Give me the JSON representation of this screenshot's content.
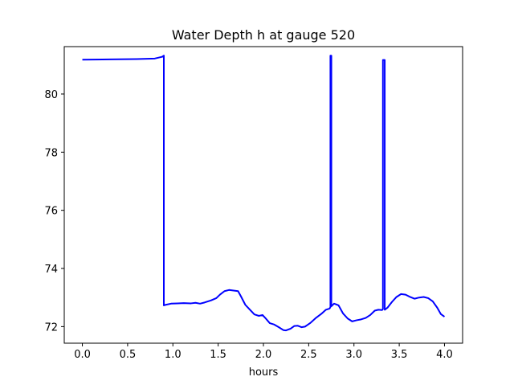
{
  "chart_data": {
    "type": "line",
    "title": "Water Depth h at gauge 520",
    "xlabel": "hours",
    "ylabel": "",
    "xlim": [
      -0.2,
      4.2
    ],
    "ylim": [
      71.43,
      81.63
    ],
    "x_ticks": [
      0.0,
      0.5,
      1.0,
      1.5,
      2.0,
      2.5,
      3.0,
      3.5,
      4.0
    ],
    "x_tick_labels": [
      "0.0",
      "0.5",
      "1.0",
      "1.5",
      "2.0",
      "2.5",
      "3.0",
      "3.5",
      "4.0"
    ],
    "y_ticks": [
      72,
      74,
      76,
      78,
      80
    ],
    "y_tick_labels": [
      "72",
      "74",
      "76",
      "78",
      "80"
    ],
    "grid": false,
    "legend": "none",
    "colors": {
      "line": "#0000ff",
      "axes": "#000000",
      "background": "#ffffff"
    },
    "series": [
      {
        "points": [
          [
            0.0,
            81.18
          ],
          [
            0.3,
            81.19
          ],
          [
            0.6,
            81.2
          ],
          [
            0.8,
            81.22
          ],
          [
            0.88,
            81.28
          ],
          [
            0.9,
            81.32
          ],
          [
            0.9,
            72.73
          ],
          [
            0.92,
            72.75
          ],
          [
            0.98,
            72.79
          ],
          [
            1.05,
            72.8
          ],
          [
            1.12,
            72.81
          ],
          [
            1.2,
            72.8
          ],
          [
            1.25,
            72.82
          ],
          [
            1.3,
            72.79
          ],
          [
            1.35,
            72.83
          ],
          [
            1.42,
            72.9
          ],
          [
            1.48,
            72.98
          ],
          [
            1.52,
            73.1
          ],
          [
            1.57,
            73.22
          ],
          [
            1.62,
            73.26
          ],
          [
            1.67,
            73.24
          ],
          [
            1.72,
            73.22
          ],
          [
            1.75,
            73.05
          ],
          [
            1.8,
            72.75
          ],
          [
            1.86,
            72.55
          ],
          [
            1.9,
            72.42
          ],
          [
            1.95,
            72.37
          ],
          [
            1.99,
            72.4
          ],
          [
            2.02,
            72.3
          ],
          [
            2.07,
            72.12
          ],
          [
            2.12,
            72.07
          ],
          [
            2.17,
            71.98
          ],
          [
            2.22,
            71.88
          ],
          [
            2.25,
            71.87
          ],
          [
            2.3,
            71.93
          ],
          [
            2.34,
            72.02
          ],
          [
            2.38,
            72.03
          ],
          [
            2.42,
            71.98
          ],
          [
            2.46,
            72.0
          ],
          [
            2.52,
            72.13
          ],
          [
            2.58,
            72.3
          ],
          [
            2.64,
            72.44
          ],
          [
            2.69,
            72.58
          ],
          [
            2.73,
            72.62
          ],
          [
            2.74,
            72.67
          ],
          [
            2.74,
            81.32
          ],
          [
            2.75,
            81.32
          ],
          [
            2.75,
            72.7
          ],
          [
            2.78,
            72.79
          ],
          [
            2.8,
            72.77
          ],
          [
            2.83,
            72.73
          ],
          [
            2.88,
            72.45
          ],
          [
            2.93,
            72.28
          ],
          [
            2.98,
            72.18
          ],
          [
            3.03,
            72.22
          ],
          [
            3.08,
            72.25
          ],
          [
            3.13,
            72.3
          ],
          [
            3.18,
            72.4
          ],
          [
            3.23,
            72.55
          ],
          [
            3.27,
            72.58
          ],
          [
            3.31,
            72.57
          ],
          [
            3.32,
            72.6
          ],
          [
            3.32,
            81.17
          ],
          [
            3.34,
            81.17
          ],
          [
            3.34,
            72.58
          ],
          [
            3.37,
            72.65
          ],
          [
            3.42,
            72.85
          ],
          [
            3.47,
            73.02
          ],
          [
            3.52,
            73.12
          ],
          [
            3.57,
            73.1
          ],
          [
            3.62,
            73.02
          ],
          [
            3.67,
            72.96
          ],
          [
            3.72,
            73.0
          ],
          [
            3.77,
            73.02
          ],
          [
            3.82,
            72.98
          ],
          [
            3.87,
            72.87
          ],
          [
            3.92,
            72.65
          ],
          [
            3.96,
            72.43
          ],
          [
            4.0,
            72.34
          ]
        ]
      }
    ]
  }
}
